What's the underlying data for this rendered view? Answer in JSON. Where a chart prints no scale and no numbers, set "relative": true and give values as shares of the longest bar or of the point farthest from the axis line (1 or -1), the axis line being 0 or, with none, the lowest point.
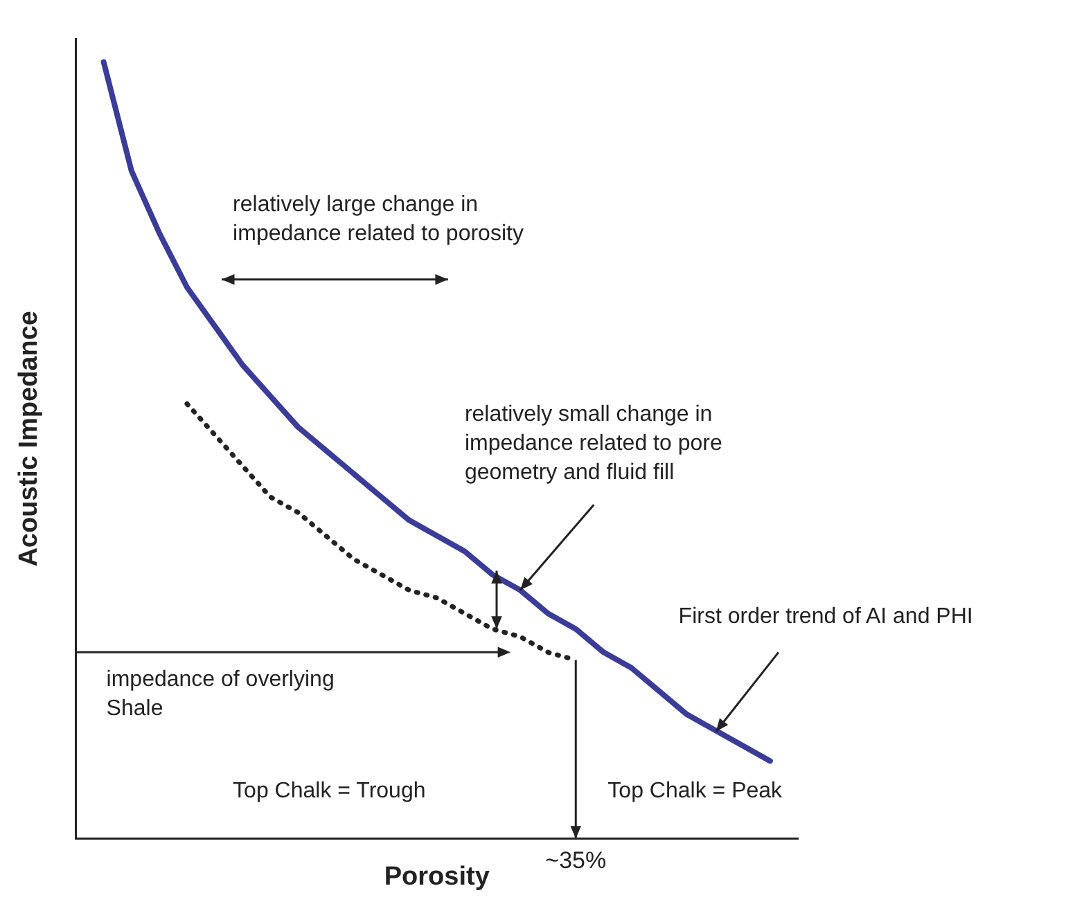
{
  "chart_data": {
    "type": "line",
    "relative": true,
    "xlabel": "Porosity",
    "ylabel": "Acoustic Impedance",
    "legend": false,
    "marker": "none",
    "categories": [
      null,
      null,
      null,
      null,
      null,
      null,
      null,
      null,
      null,
      null,
      null,
      null,
      null,
      null,
      null,
      null,
      null,
      null,
      null,
      null,
      null,
      null,
      null,
      null,
      null,
      null,
      null
    ],
    "series": [
      {
        "color": "#3b3c98",
        "line_style": "solid",
        "values": [
          null,
          1.0,
          0.86,
          0.78,
          0.71,
          0.66,
          0.61,
          0.57,
          0.53,
          0.5,
          0.47,
          0.44,
          0.41,
          0.39,
          0.37,
          0.34,
          0.32,
          0.29,
          0.27,
          0.24,
          0.22,
          0.19,
          0.16,
          0.14,
          0.12,
          0.1,
          null
        ]
      },
      {
        "color": "#222222",
        "line_style": "dotted",
        "values": [
          null,
          null,
          null,
          null,
          0.56,
          0.52,
          0.48,
          0.44,
          0.42,
          0.39,
          0.36,
          0.34,
          0.32,
          0.31,
          0.29,
          0.27,
          0.26,
          0.24,
          0.23,
          null,
          null,
          null,
          null,
          null,
          null,
          null,
          null
        ]
      }
    ],
    "ref_lines": [
      {
        "axis": "y",
        "value": 0.24,
        "label": "impedance of overlying Shale",
        "color": "#222222"
      }
    ],
    "annotations": [
      "relatively large change in impedance related to porosity",
      "relatively small change in impedance related to pore geometry and fluid fill",
      "First order trend of AI and PHI",
      "Top Chalk = Trough",
      "Top Chalk = Peak",
      "~35%"
    ]
  }
}
